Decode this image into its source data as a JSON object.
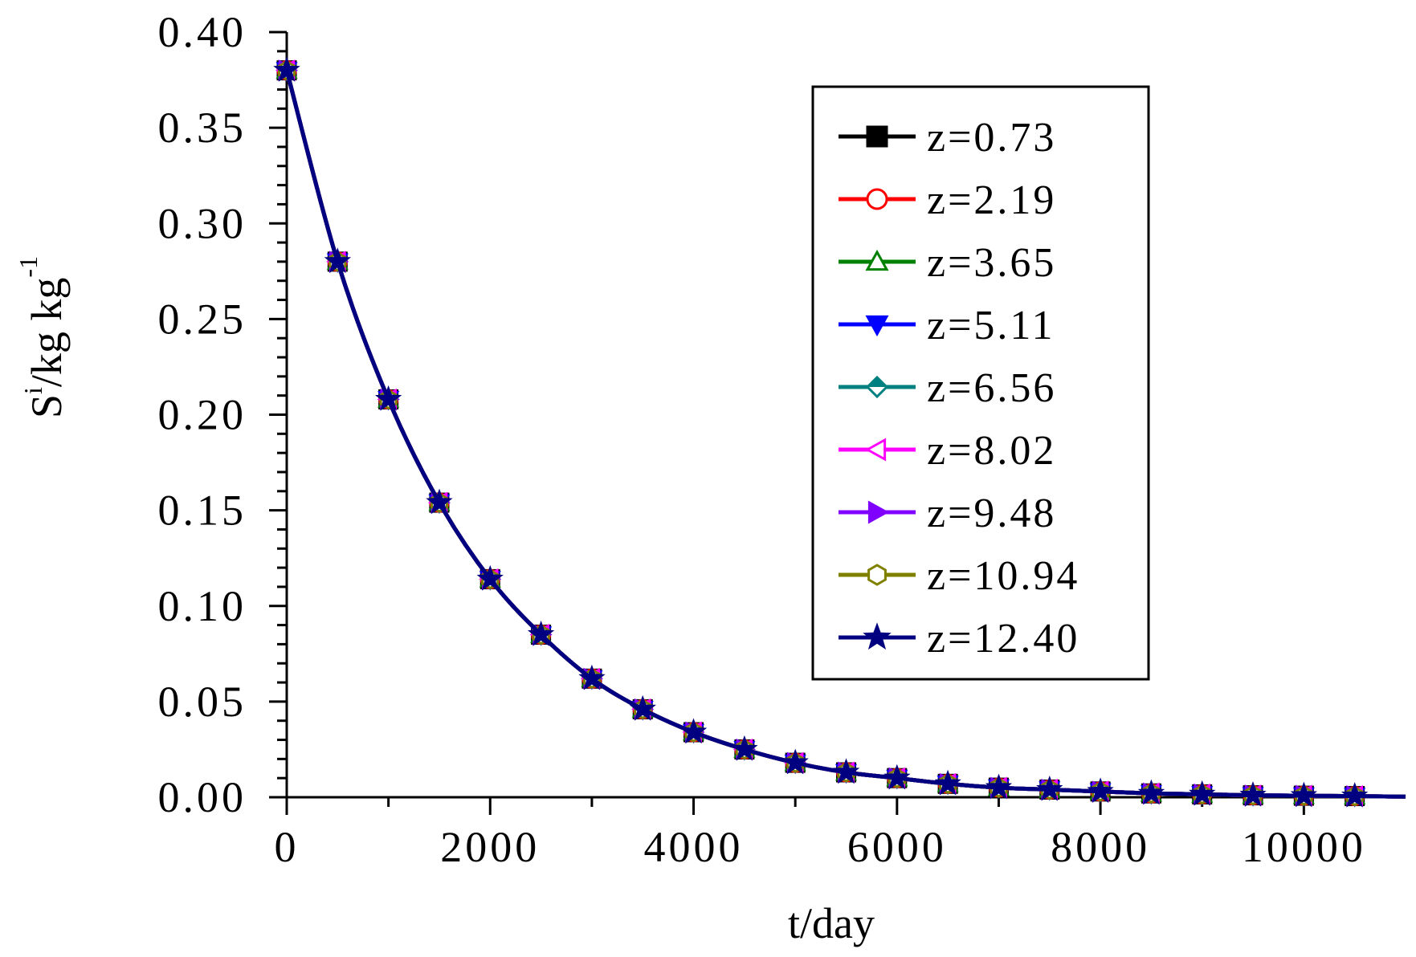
{
  "chart_data": {
    "type": "line",
    "title": "",
    "xlabel": "t/day",
    "ylabel_parts": {
      "main": "S",
      "sup1": "i",
      "mid": "/kg kg",
      "sup2": "-1"
    },
    "xlim": [
      0,
      11000
    ],
    "ylim": [
      0.0,
      0.4
    ],
    "x_ticks": [
      0,
      2000,
      4000,
      6000,
      8000,
      10000
    ],
    "x_tick_labels": [
      "0",
      "2000",
      "4000",
      "6000",
      "8000",
      "10000"
    ],
    "y_ticks": [
      0.0,
      0.05,
      0.1,
      0.15,
      0.2,
      0.25,
      0.3,
      0.35,
      0.4
    ],
    "y_tick_labels": [
      "0.00",
      "0.05",
      "0.10",
      "0.15",
      "0.20",
      "0.25",
      "0.30",
      "0.35",
      "0.40"
    ],
    "grid": false,
    "legend_position": "top-right",
    "x": [
      0,
      500,
      1000,
      1500,
      2000,
      2500,
      3000,
      3500,
      4000,
      4500,
      5000,
      5500,
      6000,
      6500,
      7000,
      7500,
      8000,
      8500,
      9000,
      9500,
      10000,
      10500
    ],
    "series": [
      {
        "name": "z=0.73",
        "color": "#000000",
        "marker": "square-filled",
        "values": [
          0.38,
          0.28,
          0.208,
          0.154,
          0.114,
          0.085,
          0.062,
          0.046,
          0.034,
          0.025,
          0.018,
          0.013,
          0.01,
          0.007,
          0.005,
          0.004,
          0.003,
          0.002,
          0.0015,
          0.001,
          0.0008,
          0.0006
        ]
      },
      {
        "name": "z=2.19",
        "color": "#ff0000",
        "marker": "circle-open",
        "values": [
          0.38,
          0.28,
          0.208,
          0.154,
          0.114,
          0.085,
          0.062,
          0.046,
          0.034,
          0.025,
          0.018,
          0.013,
          0.01,
          0.007,
          0.005,
          0.004,
          0.003,
          0.002,
          0.0015,
          0.001,
          0.0008,
          0.0006
        ]
      },
      {
        "name": "z=3.65",
        "color": "#008000",
        "marker": "triangle-up-open",
        "values": [
          0.38,
          0.28,
          0.208,
          0.154,
          0.114,
          0.085,
          0.062,
          0.046,
          0.034,
          0.025,
          0.018,
          0.013,
          0.01,
          0.007,
          0.005,
          0.004,
          0.003,
          0.002,
          0.0015,
          0.001,
          0.0008,
          0.0006
        ]
      },
      {
        "name": "z=5.11",
        "color": "#0000ff",
        "marker": "triangle-down-filled",
        "values": [
          0.38,
          0.28,
          0.208,
          0.154,
          0.114,
          0.085,
          0.062,
          0.046,
          0.034,
          0.025,
          0.018,
          0.013,
          0.01,
          0.007,
          0.005,
          0.004,
          0.003,
          0.002,
          0.0015,
          0.001,
          0.0008,
          0.0006
        ]
      },
      {
        "name": "z=6.56",
        "color": "#008080",
        "marker": "diamond-half",
        "values": [
          0.38,
          0.28,
          0.208,
          0.154,
          0.114,
          0.085,
          0.062,
          0.046,
          0.034,
          0.025,
          0.018,
          0.013,
          0.01,
          0.007,
          0.005,
          0.004,
          0.003,
          0.002,
          0.0015,
          0.001,
          0.0008,
          0.0006
        ]
      },
      {
        "name": "z=8.02",
        "color": "#ff00ff",
        "marker": "triangle-left-open",
        "values": [
          0.38,
          0.28,
          0.208,
          0.154,
          0.114,
          0.085,
          0.062,
          0.046,
          0.034,
          0.025,
          0.018,
          0.013,
          0.01,
          0.007,
          0.005,
          0.004,
          0.003,
          0.002,
          0.0015,
          0.001,
          0.0008,
          0.0006
        ]
      },
      {
        "name": "z=9.48",
        "color": "#8000ff",
        "marker": "triangle-right-filled",
        "values": [
          0.38,
          0.28,
          0.208,
          0.154,
          0.114,
          0.085,
          0.062,
          0.046,
          0.034,
          0.025,
          0.018,
          0.013,
          0.01,
          0.007,
          0.005,
          0.004,
          0.003,
          0.002,
          0.0015,
          0.001,
          0.0008,
          0.0006
        ]
      },
      {
        "name": "z=10.94",
        "color": "#808000",
        "marker": "hexagon-open",
        "values": [
          0.38,
          0.28,
          0.208,
          0.154,
          0.114,
          0.085,
          0.062,
          0.046,
          0.034,
          0.025,
          0.018,
          0.013,
          0.01,
          0.007,
          0.005,
          0.004,
          0.003,
          0.002,
          0.0015,
          0.001,
          0.0008,
          0.0006
        ]
      },
      {
        "name": "z=12.40",
        "color": "#000080",
        "marker": "star-filled",
        "values": [
          0.38,
          0.28,
          0.208,
          0.154,
          0.114,
          0.085,
          0.062,
          0.046,
          0.034,
          0.025,
          0.018,
          0.013,
          0.01,
          0.007,
          0.005,
          0.004,
          0.003,
          0.002,
          0.0015,
          0.001,
          0.0008,
          0.0006
        ]
      }
    ]
  }
}
